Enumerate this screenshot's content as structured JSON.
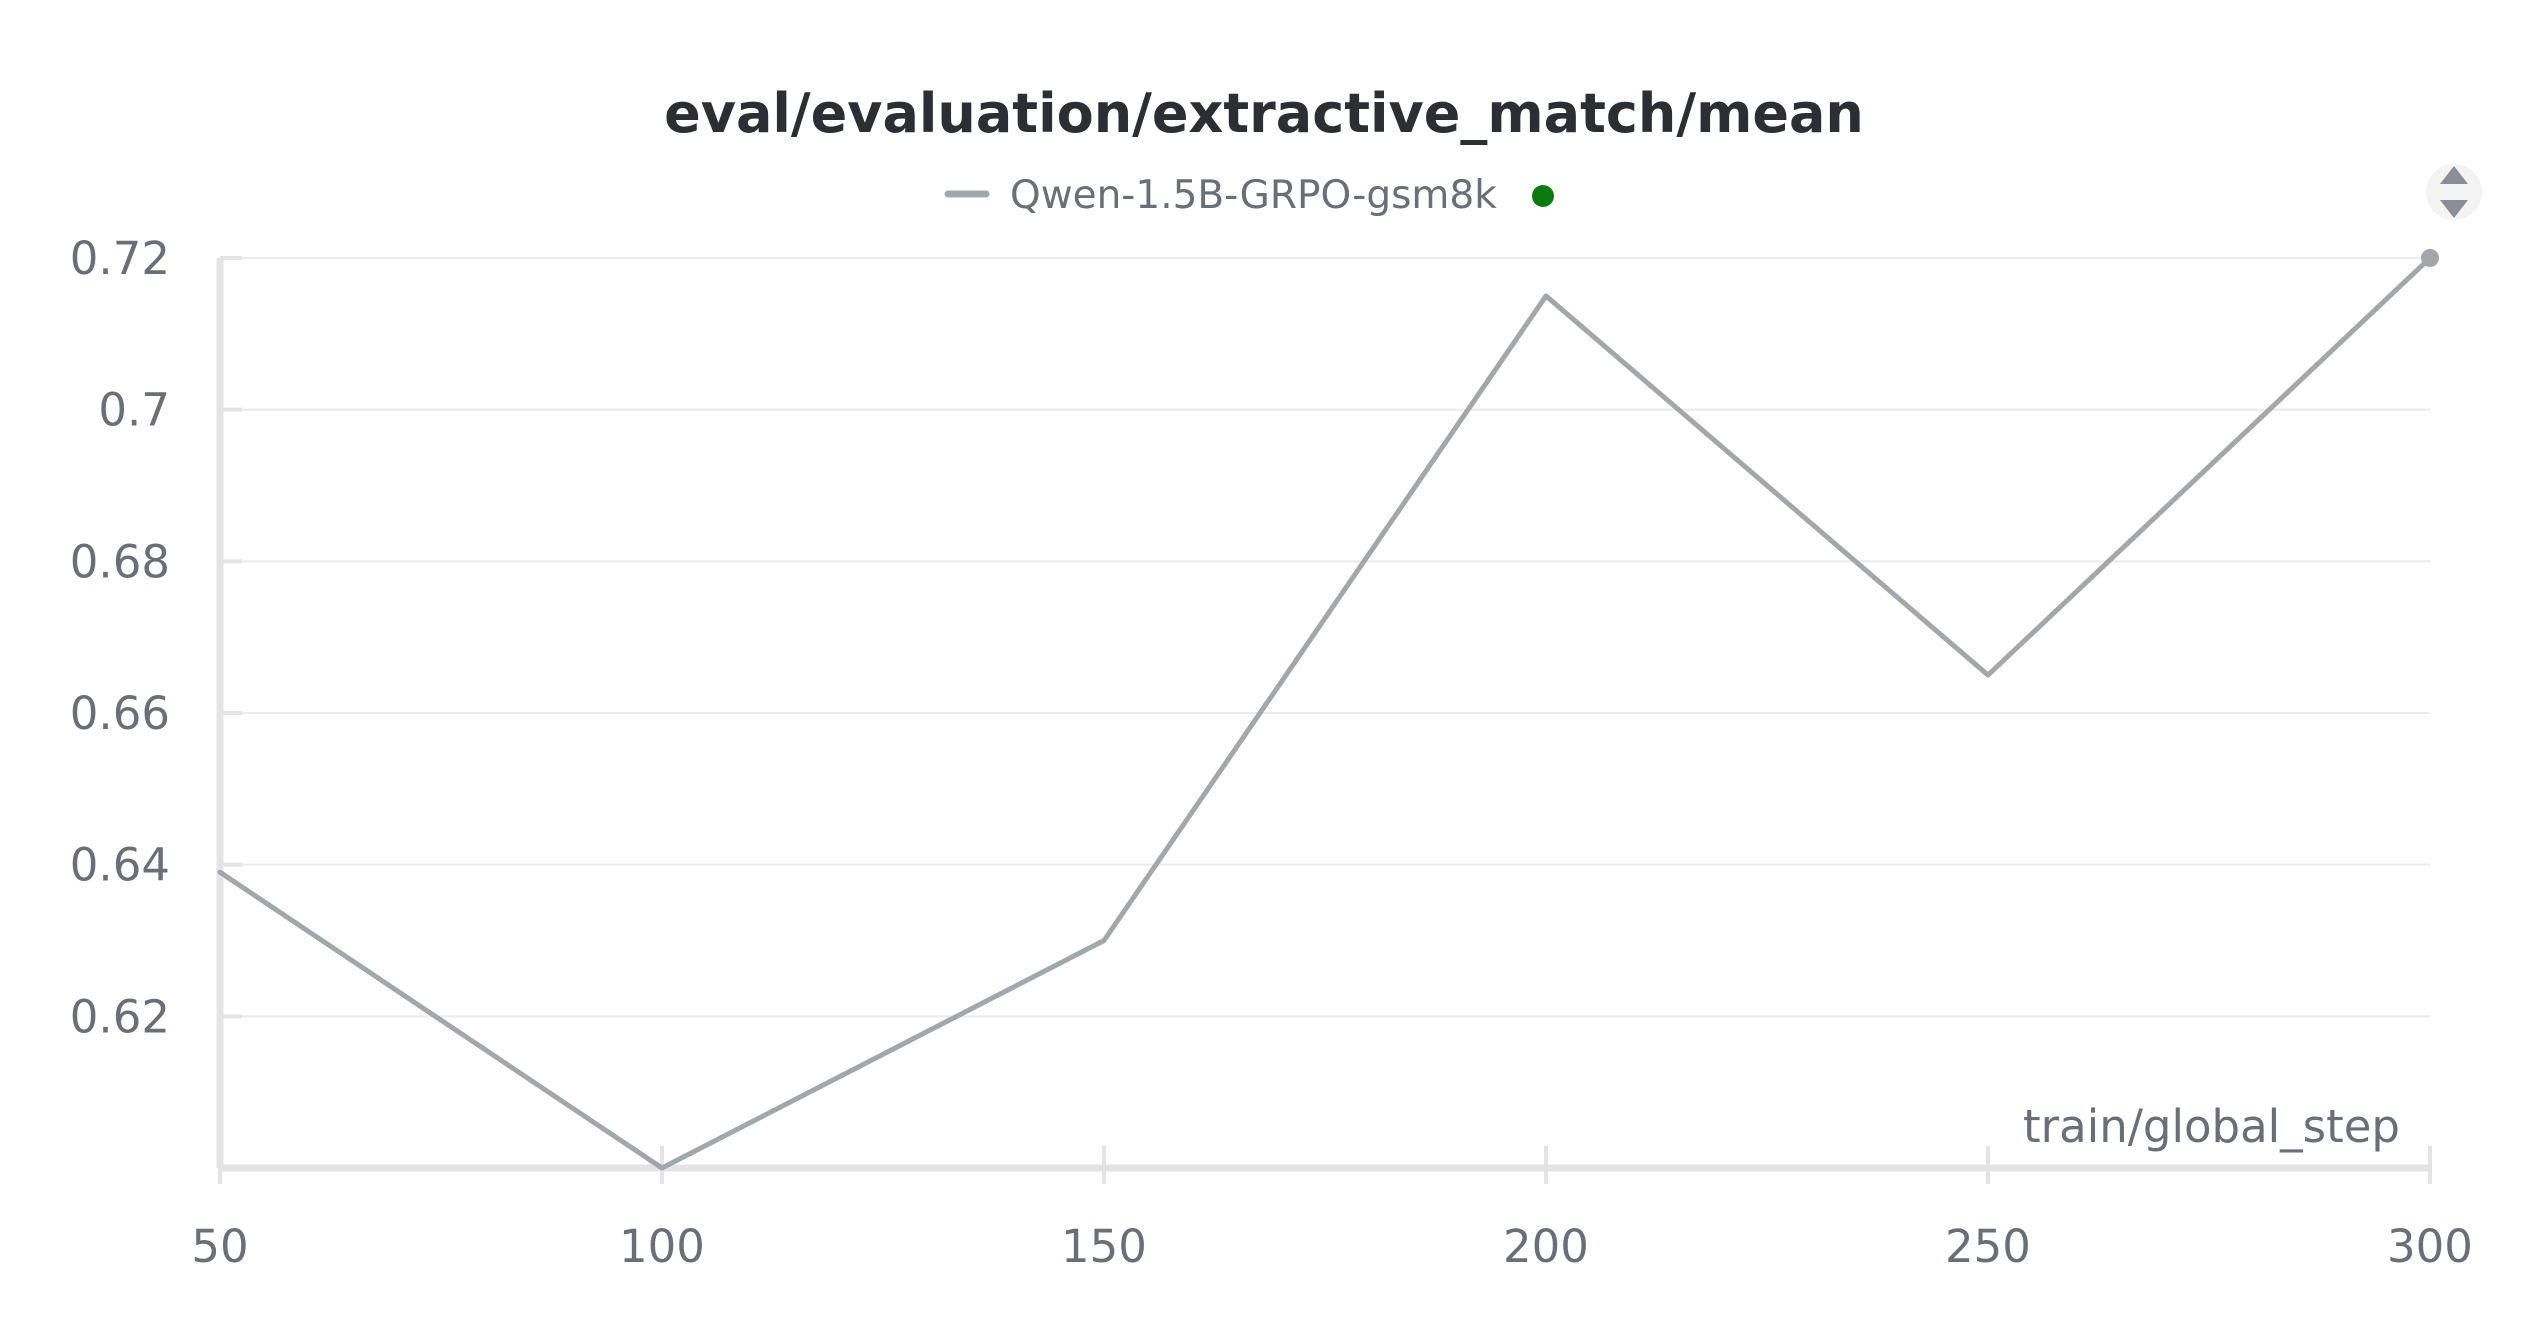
{
  "chart_data": {
    "type": "line",
    "title": "eval/evaluation/extractive_match/mean",
    "xlabel": "train/global_step",
    "ylabel": "",
    "x": [
      50,
      100,
      150,
      200,
      250,
      300
    ],
    "series": [
      {
        "name": "Qwen-1.5B-GRPO-gsm8k",
        "values": [
          0.639,
          0.6,
          0.63,
          0.715,
          0.665,
          0.72
        ],
        "color": "#a2a7ac",
        "status_color": "#0c7a0c"
      }
    ],
    "xlim": [
      50,
      300
    ],
    "ylim": [
      0.6,
      0.72
    ],
    "x_ticks": [
      50,
      100,
      150,
      200,
      250,
      300
    ],
    "x_tick_labels": [
      "50",
      "100",
      "150",
      "200",
      "250",
      "300"
    ],
    "y_ticks": [
      0.62,
      0.64,
      0.66,
      0.68,
      0.7,
      0.72
    ],
    "y_tick_labels": [
      "0.62",
      "0.64",
      "0.66",
      "0.68",
      "0.7",
      "0.72"
    ],
    "grid": true,
    "legend_position": "top-center"
  },
  "colors": {
    "grid": "#ebebeb",
    "axis": "#e4e4e6",
    "text": "#6a6e78",
    "title": "#2b2e33",
    "scroll_icon": "#8a8e96"
  },
  "icons": {
    "legend_scroll": "up-down-arrows-icon"
  }
}
